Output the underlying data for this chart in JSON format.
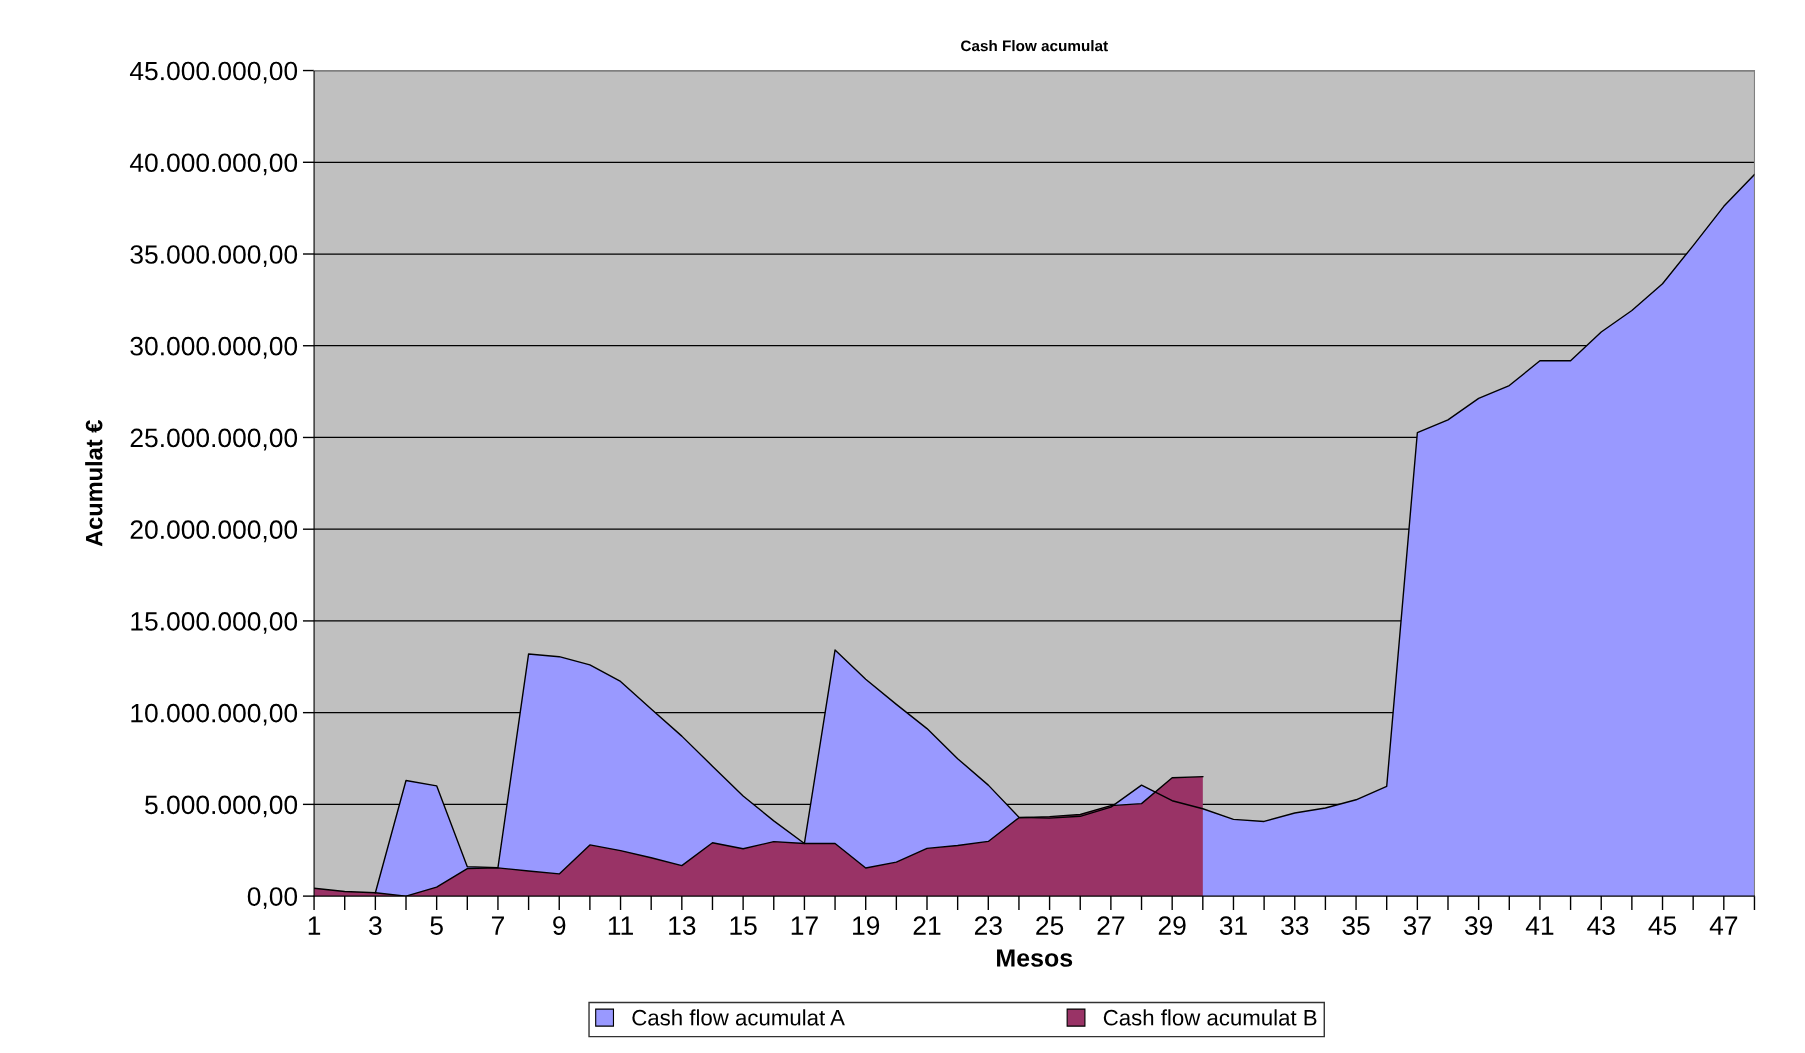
{
  "chart_data": {
    "type": "area",
    "title": "Cash Flow acumulat",
    "xlabel": "Mesos",
    "ylabel": "Acumulat €",
    "categories": [
      "1",
      null,
      "3",
      null,
      "5",
      null,
      "7",
      null,
      "9",
      null,
      "11",
      null,
      "13",
      null,
      "15",
      null,
      "17",
      null,
      "19",
      null,
      "21",
      null,
      "23",
      null,
      "25",
      null,
      "27",
      null,
      "29",
      null,
      "31",
      null,
      "33",
      null,
      "35",
      null,
      "37",
      null,
      "39",
      null,
      "41",
      null,
      "43",
      null,
      "45",
      null,
      "47",
      null
    ],
    "series": [
      {
        "name": "Cash flow acumulat A",
        "color": "#9999ff",
        "values": [
          null,
          null,
          180000,
          6300000,
          6010000,
          1600000,
          1550000,
          13200000,
          13050000,
          12600000,
          11700000,
          10200000,
          8720000,
          7080000,
          5460000,
          4100000,
          2870000,
          13420000,
          11820000,
          10450000,
          9130000,
          7490000,
          6050000,
          4300000,
          4250000,
          4350000,
          4850000,
          6050000,
          5200000,
          4760000,
          4180000,
          4070000,
          4530000,
          4800000,
          5250000,
          5980000,
          25260000,
          25960000,
          27130000,
          27830000,
          29180000,
          29180000,
          30750000,
          31920000,
          33380000,
          35460000,
          37600000,
          39330000
        ]
      },
      {
        "name": "Cash flow acumulat B",
        "color": "#993366",
        "values": [
          430000,
          250000,
          180000,
          0,
          490000,
          1500000,
          1540000,
          1370000,
          1210000,
          2790000,
          2480000,
          2090000,
          1660000,
          2910000,
          2580000,
          2970000,
          2870000,
          2870000,
          1530000,
          1850000,
          2600000,
          2760000,
          2980000,
          4270000,
          4330000,
          4450000,
          4930000,
          5040000,
          6450000,
          6510000,
          null,
          null,
          null,
          null,
          null,
          null,
          null,
          null,
          null,
          null,
          null,
          null,
          null,
          null,
          null,
          null,
          null,
          null
        ]
      }
    ],
    "ylim": [
      0,
      45000000
    ],
    "yticks": [
      {
        "value": 0,
        "label": "0,00"
      },
      {
        "value": 5000000,
        "label": "5.000.000,00"
      },
      {
        "value": 10000000,
        "label": "10.000.000,00"
      },
      {
        "value": 15000000,
        "label": "15.000.000,00"
      },
      {
        "value": 20000000,
        "label": "20.000.000,00"
      },
      {
        "value": 25000000,
        "label": "25.000.000,00"
      },
      {
        "value": 30000000,
        "label": "30.000.000,00"
      },
      {
        "value": 35000000,
        "label": "35.000.000,00"
      },
      {
        "value": 40000000,
        "label": "40.000.000,00"
      },
      {
        "value": 45000000,
        "label": "45.000.000,00"
      }
    ],
    "grid": "y",
    "legend": "bottom"
  }
}
